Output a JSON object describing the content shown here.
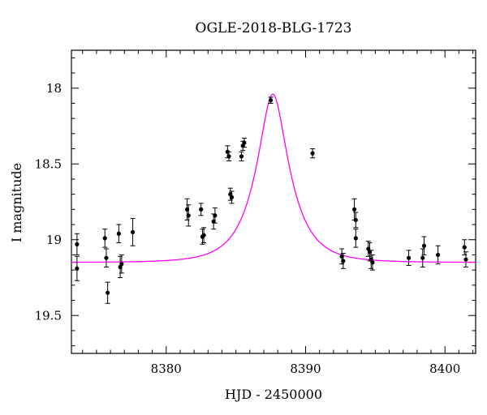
{
  "chart_data": {
    "type": "scatter",
    "title": "OGLE-2018-BLG-1723",
    "xlabel": "HJD - 2450000",
    "ylabel": "I magnitude",
    "xlim": [
      8373.2,
      8402.2
    ],
    "ylim": [
      19.75,
      17.75
    ],
    "y_inverted": true,
    "grid": false,
    "x_major_ticks": [
      8380,
      8390,
      8400
    ],
    "y_major_ticks": [
      18,
      18.5,
      19,
      19.5
    ],
    "x_tick_labels": [
      "8380",
      "8390",
      "8400"
    ],
    "y_tick_labels": [
      "18",
      "18.5",
      "19",
      "19.5"
    ],
    "colors": {
      "points": "#000000",
      "model": "#ff00ff"
    },
    "series": [
      {
        "type": "errorbar_scatter",
        "points": [
          {
            "x": 8373.6,
            "y": 19.03,
            "err": 0.07
          },
          {
            "x": 8373.6,
            "y": 19.19,
            "err": 0.08
          },
          {
            "x": 8375.6,
            "y": 18.99,
            "err": 0.06
          },
          {
            "x": 8375.7,
            "y": 19.12,
            "err": 0.06
          },
          {
            "x": 8375.8,
            "y": 19.35,
            "err": 0.07
          },
          {
            "x": 8376.6,
            "y": 18.96,
            "err": 0.06
          },
          {
            "x": 8376.7,
            "y": 19.18,
            "err": 0.07
          },
          {
            "x": 8376.8,
            "y": 19.16,
            "err": 0.06
          },
          {
            "x": 8377.6,
            "y": 18.95,
            "err": 0.09
          },
          {
            "x": 8381.5,
            "y": 18.8,
            "err": 0.07
          },
          {
            "x": 8381.6,
            "y": 18.84,
            "err": 0.07
          },
          {
            "x": 8382.5,
            "y": 18.8,
            "err": 0.04
          },
          {
            "x": 8382.6,
            "y": 18.98,
            "err": 0.05
          },
          {
            "x": 8382.7,
            "y": 18.97,
            "err": 0.05
          },
          {
            "x": 8383.4,
            "y": 18.88,
            "err": 0.05
          },
          {
            "x": 8383.5,
            "y": 18.84,
            "err": 0.05
          },
          {
            "x": 8384.4,
            "y": 18.42,
            "err": 0.04
          },
          {
            "x": 8384.5,
            "y": 18.45,
            "err": 0.03
          },
          {
            "x": 8384.6,
            "y": 18.7,
            "err": 0.04
          },
          {
            "x": 8384.7,
            "y": 18.72,
            "err": 0.04
          },
          {
            "x": 8385.4,
            "y": 18.45,
            "err": 0.03
          },
          {
            "x": 8385.5,
            "y": 18.38,
            "err": 0.03
          },
          {
            "x": 8385.6,
            "y": 18.36,
            "err": 0.03
          },
          {
            "x": 8387.5,
            "y": 18.08,
            "err": 0.02
          },
          {
            "x": 8390.5,
            "y": 18.43,
            "err": 0.03
          },
          {
            "x": 8392.6,
            "y": 19.11,
            "err": 0.05
          },
          {
            "x": 8392.7,
            "y": 19.14,
            "err": 0.05
          },
          {
            "x": 8393.5,
            "y": 18.8,
            "err": 0.07
          },
          {
            "x": 8393.6,
            "y": 18.87,
            "err": 0.05
          },
          {
            "x": 8393.6,
            "y": 18.99,
            "err": 0.06
          },
          {
            "x": 8394.5,
            "y": 19.06,
            "err": 0.05
          },
          {
            "x": 8394.6,
            "y": 19.08,
            "err": 0.06
          },
          {
            "x": 8394.7,
            "y": 19.13,
            "err": 0.06
          },
          {
            "x": 8394.8,
            "y": 19.15,
            "err": 0.05
          },
          {
            "x": 8397.4,
            "y": 19.12,
            "err": 0.05
          },
          {
            "x": 8398.4,
            "y": 19.12,
            "err": 0.06
          },
          {
            "x": 8398.5,
            "y": 19.04,
            "err": 0.06
          },
          {
            "x": 8399.5,
            "y": 19.1,
            "err": 0.06
          },
          {
            "x": 8401.4,
            "y": 19.05,
            "err": 0.05
          },
          {
            "x": 8401.5,
            "y": 19.13,
            "err": 0.05
          }
        ]
      },
      {
        "type": "model_curve",
        "peak_x": 8387.65,
        "peak_mag": 18.04,
        "baseline_mag": 19.15,
        "width": 2.3
      }
    ]
  }
}
